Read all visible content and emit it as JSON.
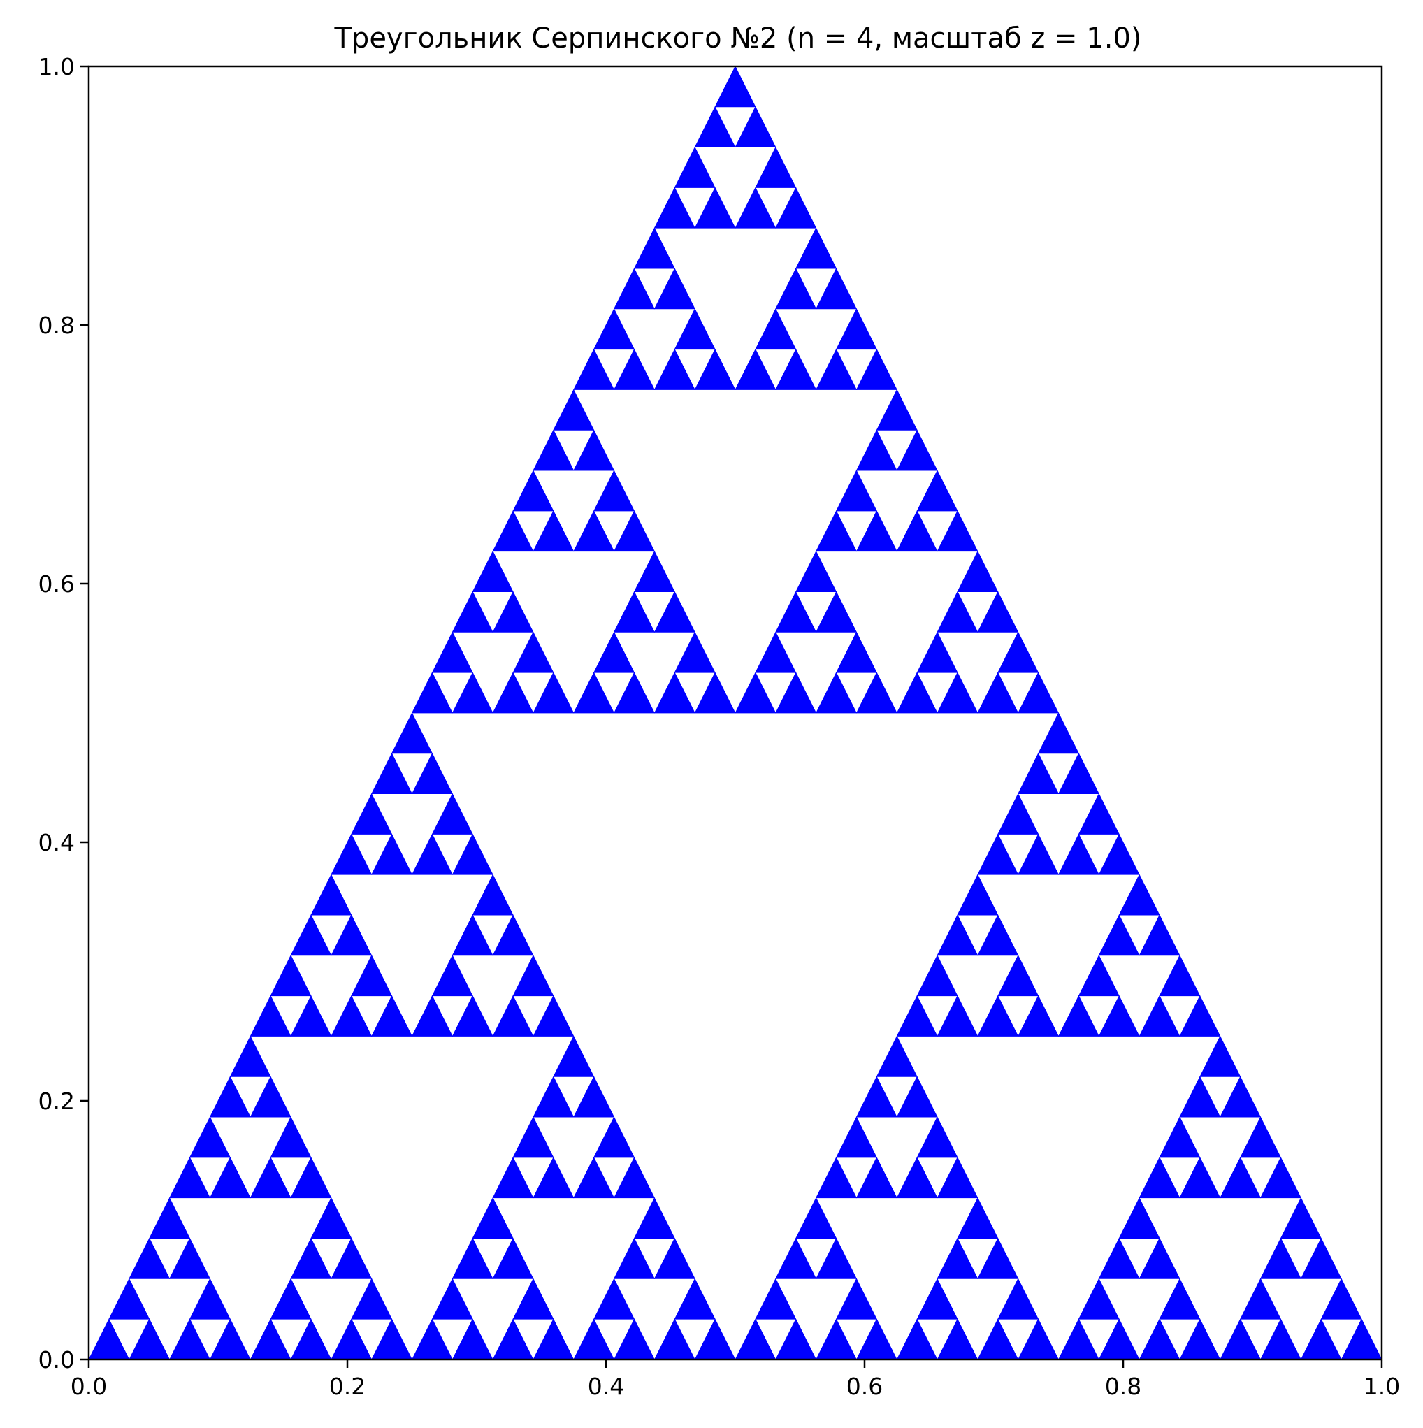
{
  "chart_data": {
    "type": "fractal-fill",
    "title": "Треугольник Серпинского №2 (n = 4, масштаб z = 1.0)",
    "xlabel": "",
    "ylabel": "",
    "xlim": [
      0.0,
      1.0
    ],
    "ylim": [
      0.0,
      1.0
    ],
    "x_ticks": [
      "0.0",
      "0.2",
      "0.4",
      "0.6",
      "0.8",
      "1.0"
    ],
    "y_ticks": [
      "0.0",
      "0.2",
      "0.4",
      "0.6",
      "0.8",
      "1.0"
    ],
    "grid": false,
    "fill_color": "#0000ff",
    "n": 4,
    "z": 1.0,
    "outer_triangle": [
      [
        0.0,
        0.0
      ],
      [
        1.0,
        0.0
      ],
      [
        0.5,
        1.0
      ]
    ]
  }
}
